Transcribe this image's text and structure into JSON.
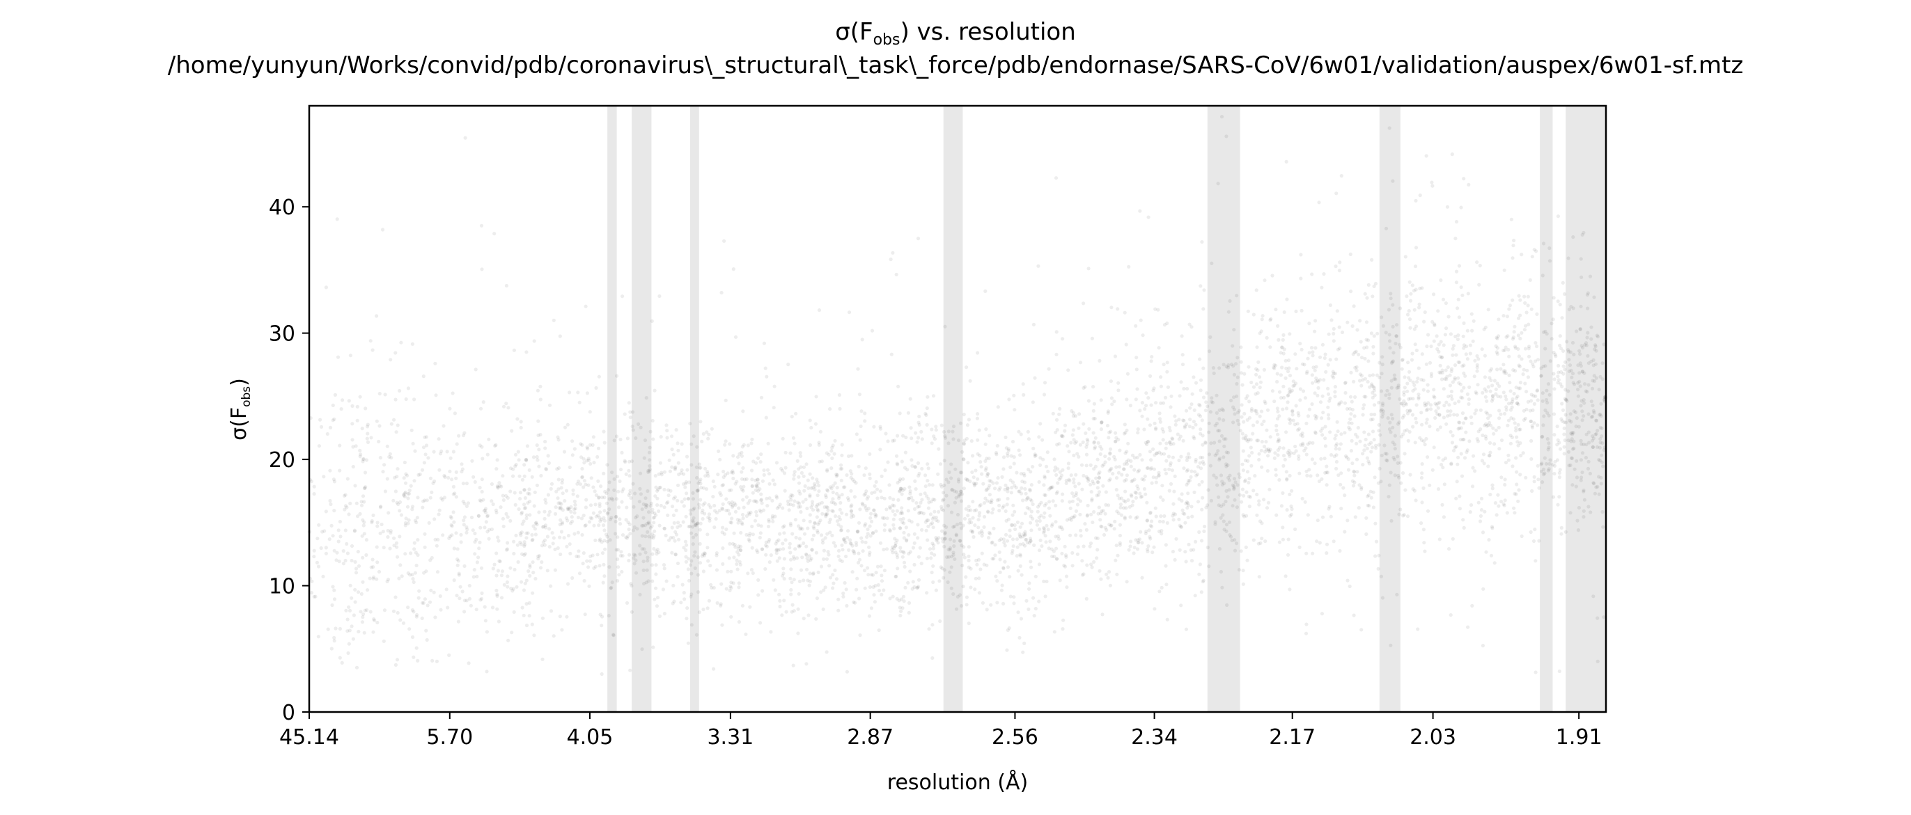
{
  "chart_data": {
    "type": "scatter",
    "title_prefix": "σ(F",
    "title_subscript": "obs",
    "title_suffix": ") vs. resolution",
    "subtitle": "/home/yunyun/Works/convid/pdb/coronavirus\\_structural\\_task\\_force/pdb/endornase/SARS-CoV/6w01/validation/auspex/6w01-sf.mtz",
    "xlabel": "resolution (Å)",
    "ylabel_prefix": "σ(F",
    "ylabel_subscript": "obs",
    "ylabel_suffix": ")",
    "x_scale": "inverse-square resolution (1/d²)",
    "xlim": [
      45.14,
      1.89
    ],
    "ylim": [
      0,
      48
    ],
    "x_ticks": [
      45.14,
      5.7,
      4.05,
      3.31,
      2.87,
      2.56,
      2.34,
      2.17,
      2.03,
      1.91
    ],
    "x_tick_labels": [
      "45.14",
      "5.70",
      "4.05",
      "3.31",
      "2.87",
      "2.56",
      "2.34",
      "2.17",
      "2.03",
      "1.91"
    ],
    "y_ticks": [
      0,
      10,
      20,
      30,
      40
    ],
    "y_tick_labels": [
      "0",
      "10",
      "20",
      "30",
      "40"
    ],
    "point_color": "#000000",
    "band_color": "#e8e8e8",
    "ice_ring_bands_resolution": [
      [
        3.93,
        3.87
      ],
      [
        3.78,
        3.67
      ],
      [
        3.48,
        3.44
      ],
      [
        2.7,
        2.66
      ],
      [
        2.27,
        2.23
      ],
      [
        2.08,
        2.06
      ],
      [
        1.94,
        1.93
      ],
      [
        1.92,
        1.89
      ]
    ],
    "trend_points": [
      {
        "resolution": 10.0,
        "sigma_median": 14,
        "sigma_spread": 6
      },
      {
        "resolution": 5.7,
        "sigma_median": 15,
        "sigma_spread": 5
      },
      {
        "resolution": 4.05,
        "sigma_median": 16,
        "sigma_spread": 4
      },
      {
        "resolution": 3.31,
        "sigma_median": 15.5,
        "sigma_spread": 3.5
      },
      {
        "resolution": 2.87,
        "sigma_median": 15,
        "sigma_spread": 3.5
      },
      {
        "resolution": 2.56,
        "sigma_median": 16,
        "sigma_spread": 4
      },
      {
        "resolution": 2.34,
        "sigma_median": 19,
        "sigma_spread": 4.5
      },
      {
        "resolution": 2.17,
        "sigma_median": 23,
        "sigma_spread": 5
      },
      {
        "resolution": 2.03,
        "sigma_median": 25,
        "sigma_spread": 5
      },
      {
        "resolution": 1.91,
        "sigma_median": 24,
        "sigma_spread": 4.5
      }
    ],
    "grid": false,
    "legend": "none"
  }
}
